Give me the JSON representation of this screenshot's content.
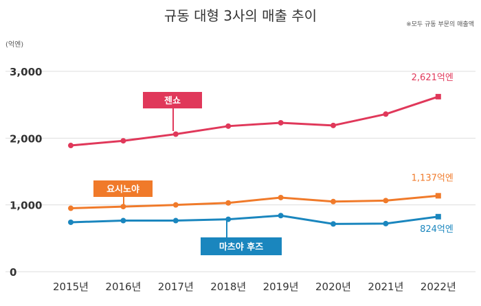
{
  "chart_data": {
    "type": "line",
    "title": "규동 대형 3사의 매출 추이",
    "note": "※모두 규동 부문의 매출액",
    "unit_label": "(억엔)",
    "x": [
      "2015년",
      "2016년",
      "2017년",
      "2018년",
      "2019년",
      "2020년",
      "2021년",
      "2022년"
    ],
    "ylim": [
      0,
      3000
    ],
    "yticks": [
      {
        "value": 0,
        "label": "0"
      },
      {
        "value": 1000,
        "label": "1,000"
      },
      {
        "value": 2000,
        "label": "2,000"
      },
      {
        "value": 3000,
        "label": "3,000"
      }
    ],
    "grid": true,
    "series": [
      {
        "name": "젠쇼",
        "color": "#e0385a",
        "values": [
          1890,
          1960,
          2060,
          2180,
          2230,
          2190,
          2360,
          2621
        ],
        "end_label": "2,621억엔"
      },
      {
        "name": "요시노야",
        "color": "#f07a2a",
        "values": [
          950,
          975,
          1000,
          1030,
          1110,
          1050,
          1065,
          1137
        ],
        "end_label": "1,137억엔"
      },
      {
        "name": "마츠야 후즈",
        "color": "#1a86be",
        "values": [
          740,
          765,
          765,
          785,
          840,
          715,
          720,
          824
        ],
        "end_label": "824억엔"
      }
    ]
  }
}
